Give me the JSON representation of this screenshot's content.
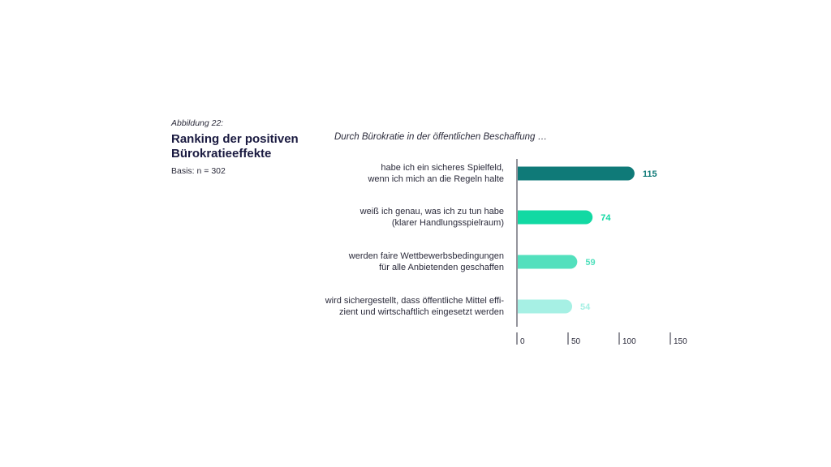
{
  "figure": {
    "label": "Abbildung 22:",
    "title_line1": "Ranking der positiven",
    "title_line2": "Bürokratieeffekte",
    "basis": "Basis: n = 302",
    "subtitle": "Durch Bürokratie in der öffentlichen Beschaffung …"
  },
  "chart_data": {
    "type": "bar",
    "orientation": "horizontal",
    "categories": [
      [
        "habe ich ein sicheres Spielfeld,",
        "wenn ich mich an die Regeln halte"
      ],
      [
        "weiß ich genau, was ich zu tun habe",
        "(klarer Handlungsspielraum)"
      ],
      [
        "werden faire Wettbewerbsbedingungen",
        "für alle Anbietenden geschaffen"
      ],
      [
        "wird sichergestellt, dass öffentliche Mittel effi-",
        "zient und wirtschaftlich eingesetzt werden"
      ]
    ],
    "values": [
      115,
      74,
      59,
      54
    ],
    "colors": [
      "#0f7a78",
      "#12d9a3",
      "#52e0bd",
      "#a6f0e4"
    ],
    "xlim": [
      0,
      150
    ],
    "ticks": [
      0,
      50,
      100,
      150
    ],
    "xlabel": "",
    "ylabel": "",
    "grid": false
  }
}
